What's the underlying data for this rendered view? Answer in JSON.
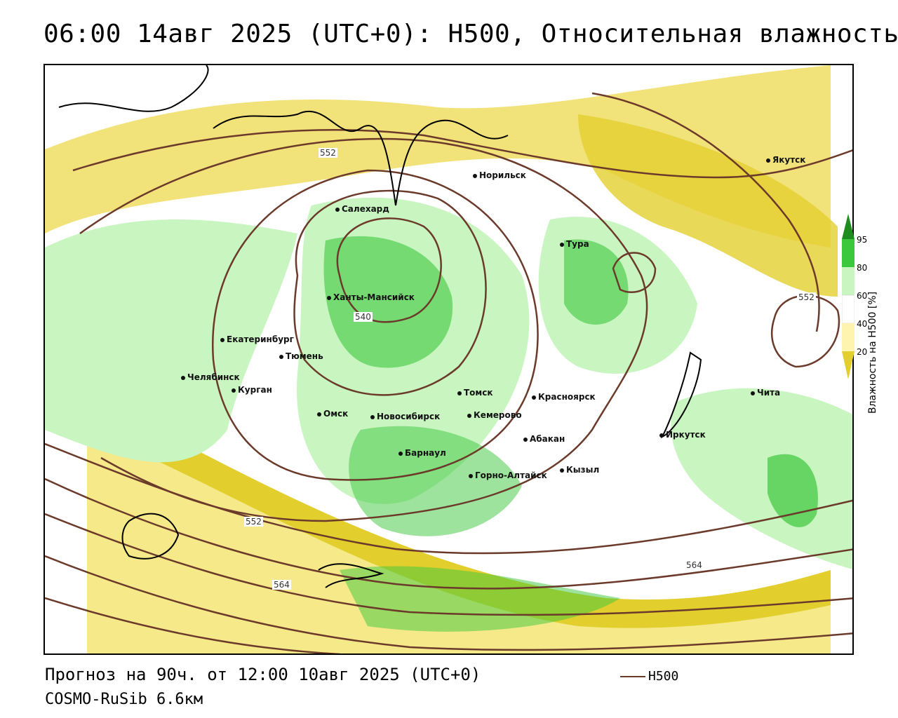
{
  "title": "06:00 14авг 2025 (UTC+0): H500, Относительная влажность",
  "footer": {
    "forecast": "Прогноз на 90ч. от 12:00 10авг 2025 (UTC+0)",
    "model": "COSMO-RuSib 6.6км"
  },
  "legend": {
    "line_label": "H500",
    "line_color": "#6b3a2a"
  },
  "colorbar": {
    "title": "Влажность на H500 [%]",
    "ticks": [
      "95",
      "80",
      "60",
      "40",
      "20"
    ],
    "colors": [
      "#1e8c1e",
      "#3cc83c",
      "#c8f5c0",
      "#ffffff",
      "#fff3b0",
      "#e2cf2e"
    ]
  },
  "contour_labels": [
    "552",
    "540",
    "552",
    "552",
    "564",
    "564"
  ],
  "cities": [
    "Норильск",
    "Якутск",
    "Салехард",
    "Тура",
    "Ханты-Мансийск",
    "Екатеринбург",
    "Тюмень",
    "Челябинск",
    "Курган",
    "Омск",
    "Новосибирск",
    "Томск",
    "Кемерово",
    "Красноярск",
    "Абакан",
    "Барнаул",
    "Горно-Алтайск",
    "Кызыл",
    "Иркутск",
    "Чита"
  ]
}
